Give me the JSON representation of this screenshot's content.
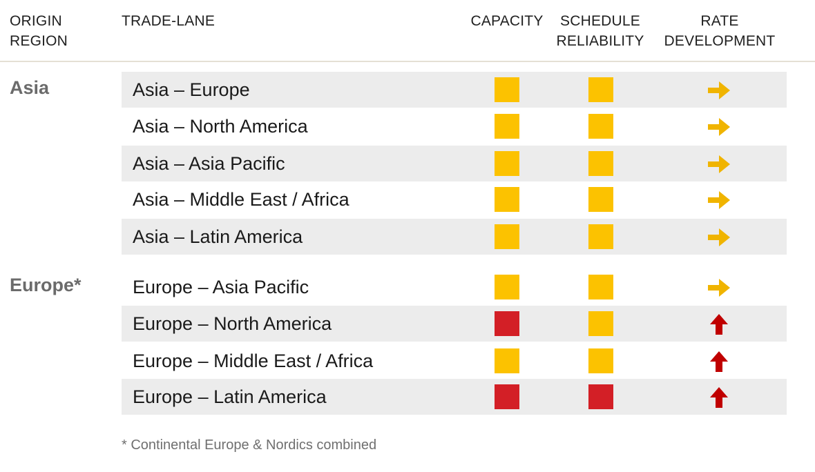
{
  "headers": {
    "origin_region": "ORIGIN\nREGION",
    "trade_lane": "TRADE-LANE",
    "capacity": "CAPACITY",
    "schedule_reliability": "SCHEDULE\nRELIABILITY",
    "rate_development": "RATE\nDEVELOPMENT"
  },
  "colors": {
    "yellow": "#FCC200",
    "red": "#D31F26",
    "arrow_yellow": "#F0B400",
    "arrow_red": "#C00000",
    "row_shade": "#ECECEC"
  },
  "regions": [
    {
      "name": "Asia",
      "lanes": [
        {
          "lane": "Asia – Europe",
          "capacity": "yellow",
          "schedule_reliability": "yellow",
          "rate_development": "right-arrow-icon"
        },
        {
          "lane": "Asia – North America",
          "capacity": "yellow",
          "schedule_reliability": "yellow",
          "rate_development": "right-arrow-icon"
        },
        {
          "lane": "Asia – Asia Pacific",
          "capacity": "yellow",
          "schedule_reliability": "yellow",
          "rate_development": "right-arrow-icon"
        },
        {
          "lane": "Asia – Middle East / Africa",
          "capacity": "yellow",
          "schedule_reliability": "yellow",
          "rate_development": "right-arrow-icon"
        },
        {
          "lane": "Asia – Latin America",
          "capacity": "yellow",
          "schedule_reliability": "yellow",
          "rate_development": "right-arrow-icon"
        }
      ]
    },
    {
      "name": "Europe*",
      "lanes": [
        {
          "lane": "Europe – Asia Pacific",
          "capacity": "yellow",
          "schedule_reliability": "yellow",
          "rate_development": "right-arrow-icon"
        },
        {
          "lane": "Europe – North America",
          "capacity": "red",
          "schedule_reliability": "yellow",
          "rate_development": "up-arrow-icon"
        },
        {
          "lane": "Europe – Middle East / Africa",
          "capacity": "yellow",
          "schedule_reliability": "yellow",
          "rate_development": "up-arrow-icon"
        },
        {
          "lane": "Europe – Latin America",
          "capacity": "red",
          "schedule_reliability": "red",
          "rate_development": "up-arrow-icon"
        }
      ]
    }
  ],
  "footnote": "* Continental Europe & Nordics combined"
}
